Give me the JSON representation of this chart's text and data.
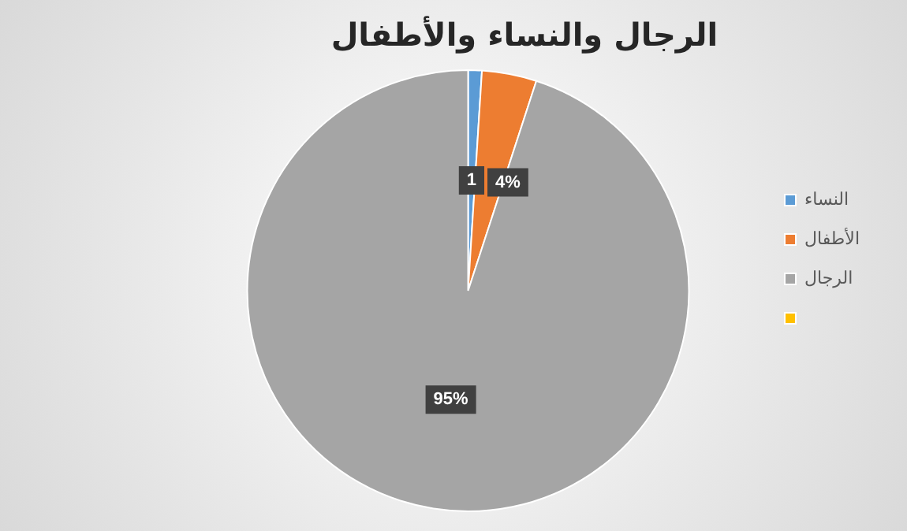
{
  "chart_data": {
    "type": "pie",
    "title": "الرجال والنساء والأطفال",
    "categories": [
      "النساء",
      "الأطفال",
      "الرجال",
      null
    ],
    "values": [
      1,
      4,
      95,
      0
    ],
    "colors": [
      "#5b9bd5",
      "#ed7d31",
      "#a5a5a5",
      "#ffc000"
    ],
    "value_labels": [
      "1",
      "4%",
      "95%",
      null
    ],
    "legend": "right"
  }
}
